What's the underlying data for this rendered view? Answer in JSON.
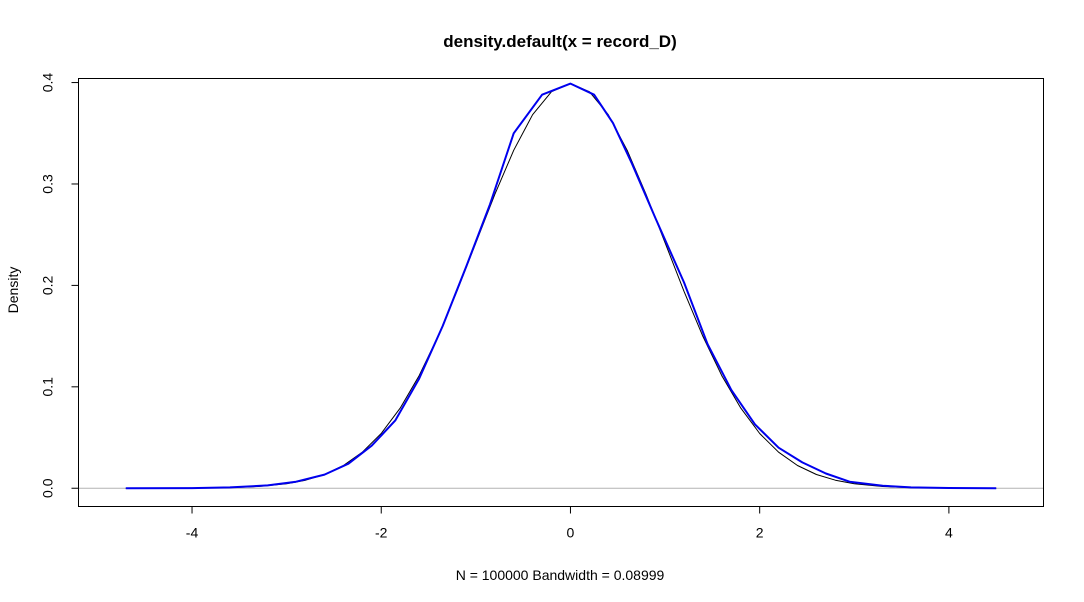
{
  "chart_data": {
    "type": "line",
    "title": "density.default(x = record_D)",
    "xlabel": "N = 100000   Bandwidth = 0.08999",
    "ylabel": "Density",
    "xlim": [
      -5.2,
      5.0
    ],
    "ylim": [
      -0.018,
      0.404
    ],
    "x_ticks": [
      -4,
      -2,
      0,
      2,
      4
    ],
    "x_tick_labels": [
      "-4",
      "-2",
      "0",
      "2",
      "4"
    ],
    "y_ticks": [
      0.0,
      0.1,
      0.2,
      0.3,
      0.4
    ],
    "y_tick_labels": [
      "0.0",
      "0.1",
      "0.2",
      "0.3",
      "0.4"
    ],
    "grid": false,
    "baseline": {
      "y": 0,
      "color": "#b3b3b3"
    },
    "series": [
      {
        "color": "#000000",
        "width": 1,
        "x": [
          -4.7,
          -4.0,
          -3.6,
          -3.3,
          -3.0,
          -2.8,
          -2.6,
          -2.4,
          -2.2,
          -2.0,
          -1.8,
          -1.6,
          -1.4,
          -1.2,
          -1.0,
          -0.8,
          -0.6,
          -0.4,
          -0.2,
          0.0,
          0.2,
          0.4,
          0.6,
          0.8,
          1.0,
          1.2,
          1.4,
          1.6,
          1.8,
          2.0,
          2.2,
          2.4,
          2.6,
          2.8,
          3.0,
          3.3,
          3.6,
          4.0,
          4.5
        ],
        "y": [
          0.0,
          0.0001,
          0.0006,
          0.0017,
          0.0044,
          0.0079,
          0.0136,
          0.0224,
          0.0355,
          0.054,
          0.079,
          0.111,
          0.1497,
          0.1942,
          0.242,
          0.2897,
          0.3332,
          0.3683,
          0.391,
          0.399,
          0.391,
          0.3683,
          0.3332,
          0.2897,
          0.242,
          0.1942,
          0.1497,
          0.111,
          0.079,
          0.054,
          0.0355,
          0.0224,
          0.0136,
          0.0079,
          0.0044,
          0.0017,
          0.0006,
          0.0001,
          0.0
        ]
      },
      {
        "color": "#0000ee",
        "width": 2,
        "x": [
          -4.7,
          -4.0,
          -3.6,
          -3.2,
          -2.9,
          -2.6,
          -2.35,
          -2.1,
          -1.85,
          -1.6,
          -1.35,
          -1.1,
          -0.85,
          -0.6,
          -0.3,
          0.0,
          0.25,
          0.45,
          0.65,
          0.9,
          1.2,
          1.45,
          1.7,
          1.95,
          2.2,
          2.45,
          2.7,
          2.95,
          3.3,
          3.6,
          4.0,
          4.5
        ],
        "y": [
          0.0,
          0.0001,
          0.0008,
          0.0028,
          0.0065,
          0.0135,
          0.024,
          0.042,
          0.067,
          0.108,
          0.16,
          0.219,
          0.28,
          0.35,
          0.388,
          0.399,
          0.388,
          0.36,
          0.32,
          0.266,
          0.203,
          0.142,
          0.097,
          0.063,
          0.04,
          0.0255,
          0.0145,
          0.0065,
          0.0025,
          0.0008,
          0.0002,
          0.0
        ]
      }
    ]
  }
}
